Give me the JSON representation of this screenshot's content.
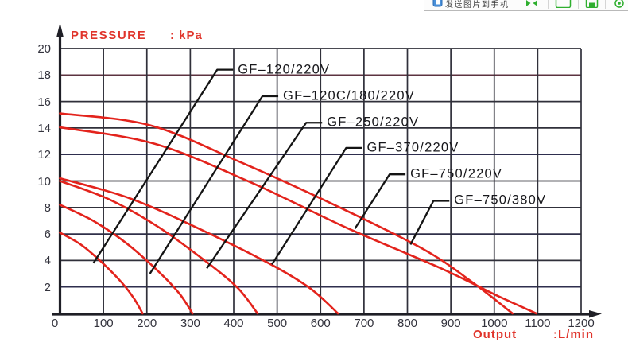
{
  "toolbar": {
    "send_label": "发送图片到手机"
  },
  "chart_data": {
    "type": "line",
    "ylabel": "PRESSURE",
    "ylabel_unit": ": kPa",
    "xlabel": "Output",
    "xlabel_unit": ":L/min",
    "xlim": [
      0,
      1200
    ],
    "ylim": [
      0,
      20
    ],
    "x_ticks": [
      0,
      100,
      200,
      300,
      400,
      500,
      600,
      700,
      800,
      900,
      1000,
      1100,
      1200
    ],
    "y_ticks": [
      2,
      4,
      6,
      8,
      10,
      12,
      14,
      16,
      18,
      20
    ],
    "grid": true,
    "line_color": "#e3231c",
    "series": [
      {
        "name": "GF–120/220V",
        "color": "#e3231c",
        "points": [
          [
            0,
            6.1
          ],
          [
            48,
            5.2
          ],
          [
            95,
            3.9
          ],
          [
            143,
            2.3
          ],
          [
            171,
            1.1
          ],
          [
            190,
            0
          ]
        ]
      },
      {
        "name": "GF–120C/180/220V",
        "color": "#e3231c",
        "points": [
          [
            0,
            8.2
          ],
          [
            76,
            7.0
          ],
          [
            153,
            5.3
          ],
          [
            229,
            3.1
          ],
          [
            275,
            1.5
          ],
          [
            305,
            0
          ]
        ]
      },
      {
        "name": "GF–250/220V",
        "color": "#e3231c",
        "points": [
          [
            0,
            10.0
          ],
          [
            114,
            8.6
          ],
          [
            228,
            6.5
          ],
          [
            341,
            3.8
          ],
          [
            410,
            1.9
          ],
          [
            455,
            0
          ]
        ]
      },
      {
        "name": "GF–370/220V",
        "color": "#e3231c",
        "points": [
          [
            0,
            10.2
          ],
          [
            160,
            8.7
          ],
          [
            320,
            6.4
          ],
          [
            480,
            3.8
          ],
          [
            576,
            1.9
          ],
          [
            640,
            0
          ]
        ]
      },
      {
        "name": "GF–750/220V",
        "color": "#e3231c",
        "points": [
          [
            0,
            15.1
          ],
          [
            208,
            14.2
          ],
          [
            417,
            11.4
          ],
          [
            625,
            8.3
          ],
          [
            834,
            4.9
          ],
          [
            950,
            2.35
          ],
          [
            1042,
            0
          ]
        ]
      },
      {
        "name": "GF–750/380V",
        "color": "#e3231c",
        "points": [
          [
            0,
            14.05
          ],
          [
            219,
            12.8
          ],
          [
            439,
            9.9
          ],
          [
            658,
            6.5
          ],
          [
            878,
            3.4
          ],
          [
            1000,
            1.45
          ],
          [
            1097,
            0
          ]
        ]
      }
    ],
    "annotations": [
      {
        "label": "GF–120/220V",
        "tip": [
          77,
          3.8
        ],
        "bend": [
          362,
          18.4
        ]
      },
      {
        "label": "GF–120C/180/220V",
        "tip": [
          207,
          3.0
        ],
        "bend": [
          466,
          16.4
        ]
      },
      {
        "label": "GF–250/220V",
        "tip": [
          338,
          3.4
        ],
        "bend": [
          567,
          14.4
        ]
      },
      {
        "label": "GF–370/220V",
        "tip": [
          488,
          3.7
        ],
        "bend": [
          659,
          12.5
        ]
      },
      {
        "label": "GF–750/220V",
        "tip": [
          679,
          6.4
        ],
        "bend": [
          759,
          10.5
        ]
      },
      {
        "label": "GF–750/380V",
        "tip": [
          807,
          5.2
        ],
        "bend": [
          860,
          8.5
        ]
      }
    ]
  }
}
